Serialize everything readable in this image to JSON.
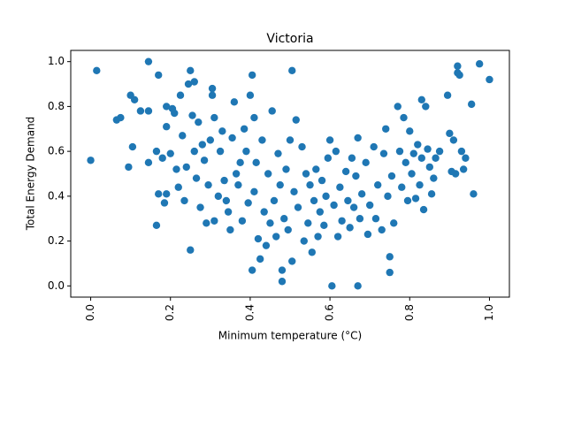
{
  "chart_data": {
    "type": "scatter",
    "title": "Victoria",
    "x_label": "Minimum temperature (°C)",
    "y_label": "Total Energy Demand",
    "color": "#1f77b4",
    "xlim": [
      -0.05,
      1.05
    ],
    "ylim": [
      -0.05,
      1.05
    ],
    "xticks": [
      {
        "value": 0,
        "label": "0.0"
      },
      0.2,
      0.4,
      0.6,
      0.8,
      {
        "value": 1,
        "label": "1.0"
      }
    ],
    "yticks": [
      {
        "value": 0,
        "label": "0.0"
      },
      0.2,
      0.4,
      0.6,
      0.8,
      {
        "value": 1,
        "label": "1.0"
      }
    ],
    "x": [
      0.0,
      0.015,
      0.065,
      0.075,
      0.095,
      0.1,
      0.11,
      0.105,
      0.125,
      0.145,
      0.145,
      0.145,
      0.165,
      0.17,
      0.17,
      0.165,
      0.18,
      0.185,
      0.19,
      0.19,
      0.19,
      0.2,
      0.205,
      0.21,
      0.215,
      0.22,
      0.225,
      0.23,
      0.235,
      0.24,
      0.245,
      0.25,
      0.25,
      0.255,
      0.26,
      0.26,
      0.265,
      0.27,
      0.275,
      0.28,
      0.285,
      0.29,
      0.295,
      0.3,
      0.305,
      0.305,
      0.31,
      0.31,
      0.32,
      0.325,
      0.33,
      0.335,
      0.34,
      0.345,
      0.35,
      0.355,
      0.36,
      0.365,
      0.37,
      0.375,
      0.38,
      0.385,
      0.39,
      0.395,
      0.4,
      0.405,
      0.405,
      0.41,
      0.41,
      0.415,
      0.42,
      0.425,
      0.43,
      0.435,
      0.44,
      0.445,
      0.45,
      0.455,
      0.46,
      0.465,
      0.47,
      0.475,
      0.48,
      0.48,
      0.485,
      0.49,
      0.495,
      0.5,
      0.505,
      0.505,
      0.51,
      0.515,
      0.52,
      0.53,
      0.535,
      0.54,
      0.545,
      0.55,
      0.555,
      0.56,
      0.565,
      0.57,
      0.575,
      0.58,
      0.585,
      0.59,
      0.595,
      0.6,
      0.605,
      0.61,
      0.615,
      0.62,
      0.625,
      0.63,
      0.64,
      0.645,
      0.65,
      0.655,
      0.66,
      0.665,
      0.67,
      0.67,
      0.675,
      0.68,
      0.69,
      0.695,
      0.7,
      0.71,
      0.715,
      0.72,
      0.73,
      0.735,
      0.74,
      0.745,
      0.75,
      0.75,
      0.755,
      0.76,
      0.77,
      0.775,
      0.78,
      0.785,
      0.79,
      0.795,
      0.8,
      0.805,
      0.81,
      0.815,
      0.82,
      0.825,
      0.83,
      0.83,
      0.835,
      0.84,
      0.845,
      0.85,
      0.855,
      0.86,
      0.865,
      0.875,
      0.895,
      0.9,
      0.905,
      0.91,
      0.915,
      0.92,
      0.92,
      0.925,
      0.93,
      0.935,
      0.94,
      0.955,
      0.96,
      0.975,
      1.0
    ],
    "values": [
      0.56,
      0.96,
      0.74,
      0.75,
      0.53,
      0.85,
      0.83,
      0.62,
      0.78,
      0.78,
      1.0,
      0.55,
      0.27,
      0.94,
      0.41,
      0.6,
      0.57,
      0.37,
      0.8,
      0.71,
      0.41,
      0.59,
      0.79,
      0.77,
      0.52,
      0.44,
      0.85,
      0.67,
      0.38,
      0.53,
      0.9,
      0.96,
      0.16,
      0.76,
      0.91,
      0.6,
      0.48,
      0.73,
      0.35,
      0.63,
      0.56,
      0.28,
      0.45,
      0.65,
      0.88,
      0.85,
      0.75,
      0.29,
      0.4,
      0.6,
      0.69,
      0.47,
      0.38,
      0.33,
      0.25,
      0.66,
      0.82,
      0.5,
      0.45,
      0.55,
      0.29,
      0.7,
      0.6,
      0.37,
      0.85,
      0.94,
      0.07,
      0.75,
      0.42,
      0.55,
      0.21,
      0.12,
      0.65,
      0.33,
      0.18,
      0.5,
      0.28,
      0.78,
      0.38,
      0.22,
      0.59,
      0.45,
      0.07,
      0.02,
      0.3,
      0.52,
      0.25,
      0.65,
      0.96,
      0.11,
      0.42,
      0.74,
      0.35,
      0.62,
      0.2,
      0.5,
      0.28,
      0.45,
      0.15,
      0.38,
      0.52,
      0.22,
      0.33,
      0.47,
      0.27,
      0.4,
      0.57,
      0.65,
      0.0,
      0.36,
      0.6,
      0.22,
      0.44,
      0.29,
      0.51,
      0.38,
      0.26,
      0.57,
      0.35,
      0.49,
      0.0,
      0.66,
      0.3,
      0.41,
      0.55,
      0.23,
      0.36,
      0.62,
      0.3,
      0.45,
      0.25,
      0.59,
      0.7,
      0.4,
      0.13,
      0.06,
      0.49,
      0.28,
      0.8,
      0.6,
      0.44,
      0.75,
      0.55,
      0.38,
      0.69,
      0.5,
      0.59,
      0.39,
      0.63,
      0.45,
      0.83,
      0.57,
      0.34,
      0.8,
      0.61,
      0.53,
      0.41,
      0.48,
      0.57,
      0.6,
      0.85,
      0.68,
      0.51,
      0.65,
      0.5,
      0.98,
      0.95,
      0.94,
      0.6,
      0.52,
      0.57,
      0.81,
      0.41,
      0.99,
      0.92
    ]
  }
}
